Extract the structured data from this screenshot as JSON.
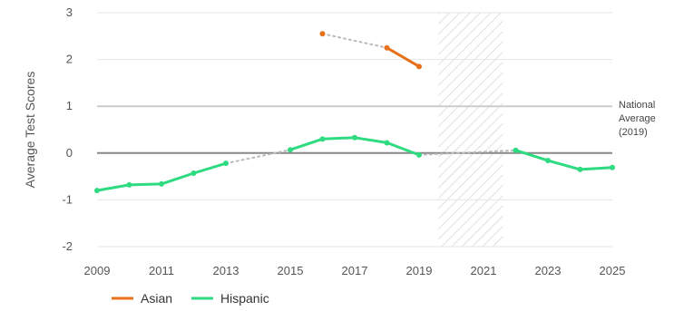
{
  "chart_data": {
    "type": "line",
    "title": "",
    "xlabel": "",
    "ylabel": "Average Test Scores",
    "xlim": [
      2009,
      2025
    ],
    "ylim": [
      -2,
      3
    ],
    "x_ticks": [
      "2009",
      "2011",
      "2013",
      "2015",
      "2017",
      "2019",
      "2021",
      "2023",
      "2025"
    ],
    "y_ticks": [
      "3",
      "2",
      "1",
      "0",
      "-1",
      "-2"
    ],
    "grid": "horizontal",
    "legend_position": "bottom-left",
    "reference_lines": [
      {
        "y": 0,
        "color": "#888888"
      },
      {
        "y": 1,
        "color": "#cccccc",
        "label_lines": [
          "National",
          "Average",
          "(2019)"
        ]
      }
    ],
    "shaded_region": {
      "x": [
        2019.6,
        2021.6
      ],
      "pattern": "diagonal-hatch"
    },
    "series": [
      {
        "name": "Asian",
        "color": "#E8701A",
        "points": [
          {
            "x": 2016,
            "y": 2.55
          },
          {
            "x": 2018,
            "y": 2.25
          },
          {
            "x": 2019,
            "y": 1.85
          }
        ],
        "segments": [
          {
            "from": 2016,
            "to": 2018,
            "style": "dotted"
          },
          {
            "from": 2018,
            "to": 2019,
            "style": "solid"
          }
        ]
      },
      {
        "name": "Hispanic",
        "color": "#2EDB80",
        "points": [
          {
            "x": 2009,
            "y": -0.8
          },
          {
            "x": 2010,
            "y": -0.68
          },
          {
            "x": 2011,
            "y": -0.66
          },
          {
            "x": 2012,
            "y": -0.43
          },
          {
            "x": 2013,
            "y": -0.22
          },
          {
            "x": 2015,
            "y": 0.07
          },
          {
            "x": 2016,
            "y": 0.3
          },
          {
            "x": 2017,
            "y": 0.33
          },
          {
            "x": 2018,
            "y": 0.22
          },
          {
            "x": 2019,
            "y": -0.04
          },
          {
            "x": 2022,
            "y": 0.06
          },
          {
            "x": 2023,
            "y": -0.16
          },
          {
            "x": 2024,
            "y": -0.35
          },
          {
            "x": 2025,
            "y": -0.31
          }
        ],
        "segments": [
          {
            "from": 2009,
            "to": 2013,
            "style": "solid"
          },
          {
            "from": 2013,
            "to": 2015,
            "style": "dotted"
          },
          {
            "from": 2015,
            "to": 2019,
            "style": "solid"
          },
          {
            "from": 2019,
            "to": 2022,
            "style": "dotted"
          },
          {
            "from": 2022,
            "to": 2025,
            "style": "solid"
          }
        ]
      }
    ]
  }
}
